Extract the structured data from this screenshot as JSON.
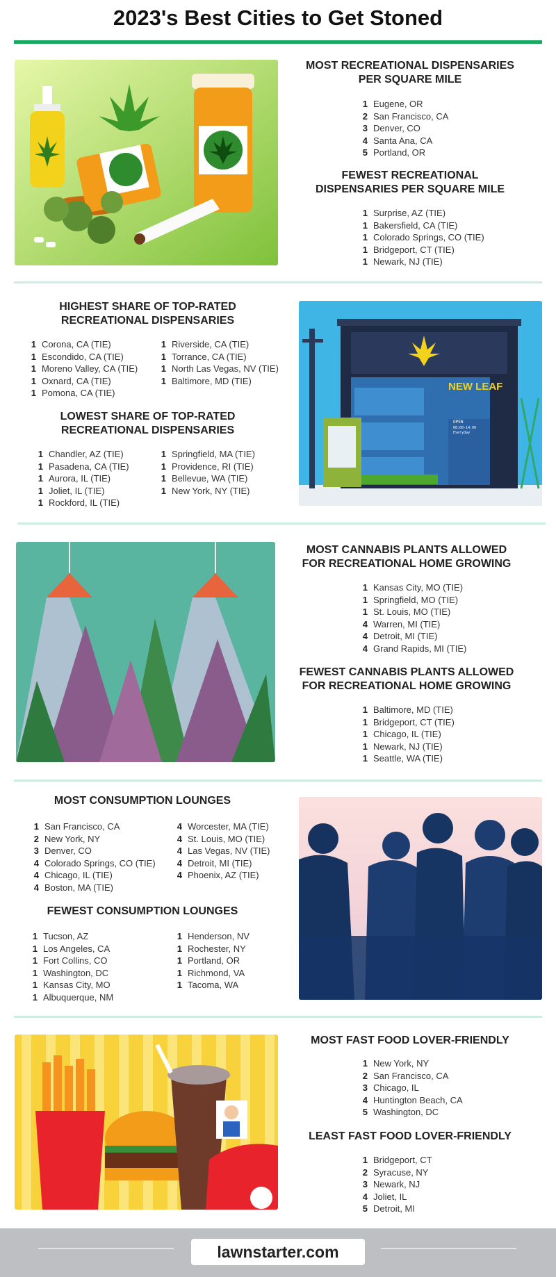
{
  "title": "2023's Best Cities to Get Stoned",
  "s1": {
    "a_title": "MOST RECREATIONAL DISPENSARIES PER SQUARE MILE",
    "a": [
      [
        "1",
        "Eugene, OR"
      ],
      [
        "2",
        "San Francisco, CA"
      ],
      [
        "3",
        "Denver, CO"
      ],
      [
        "4",
        "Santa Ana, CA"
      ],
      [
        "5",
        "Portland, OR"
      ]
    ],
    "b_title": "FEWEST RECREATIONAL DISPENSARIES PER SQUARE MILE",
    "b": [
      [
        "1",
        "Surprise, AZ (TIE)"
      ],
      [
        "1",
        "Bakersfield, CA (TIE)"
      ],
      [
        "1",
        "Colorado Springs, CO (TIE)"
      ],
      [
        "1",
        "Bridgeport, CT (TIE)"
      ],
      [
        "1",
        "Newark, NJ (TIE)"
      ]
    ]
  },
  "s2": {
    "a_title": "HIGHEST SHARE OF TOP-RATED RECREATIONAL DISPENSARIES",
    "a_left": [
      [
        "1",
        "Corona, CA (TIE)"
      ],
      [
        "1",
        "Escondido, CA (TIE)"
      ],
      [
        "1",
        "Moreno Valley, CA (TIE)"
      ],
      [
        "1",
        "Oxnard, CA (TIE)"
      ],
      [
        "1",
        "Pomona, CA (TIE)"
      ]
    ],
    "a_right": [
      [
        "1",
        "Riverside, CA (TIE)"
      ],
      [
        "1",
        "Torrance, CA (TIE)"
      ],
      [
        "1",
        "North Las Vegas, NV (TIE)"
      ],
      [
        "1",
        "Baltimore, MD (TIE)"
      ]
    ],
    "b_title": "LOWEST SHARE OF TOP-RATED RECREATIONAL DISPENSARIES",
    "b_left": [
      [
        "1",
        "Chandler, AZ (TIE)"
      ],
      [
        "1",
        "Pasadena, CA (TIE)"
      ],
      [
        "1",
        "Aurora, IL (TIE)"
      ],
      [
        "1",
        "Joliet, IL (TIE)"
      ],
      [
        "1",
        "Rockford, IL (TIE)"
      ]
    ],
    "b_right": [
      [
        "1",
        "Springfield, MA (TIE)"
      ],
      [
        "1",
        "Providence, RI (TIE)"
      ],
      [
        "1",
        "Bellevue, WA (TIE)"
      ],
      [
        "1",
        "New York, NY (TIE)"
      ]
    ],
    "store_sign": "NEW LEAF",
    "store_open": "OPEN",
    "store_hours": "08:00-14:00",
    "store_days": "Everyday"
  },
  "s3": {
    "a_title": "MOST CANNABIS PLANTS ALLOWED FOR RECREATIONAL HOME GROWING",
    "a": [
      [
        "1",
        "Kansas City, MO (TIE)"
      ],
      [
        "1",
        "Springfield, MO (TIE)"
      ],
      [
        "1",
        "St. Louis, MO (TIE)"
      ],
      [
        "4",
        "Warren, MI (TIE)"
      ],
      [
        "4",
        "Detroit, MI (TIE)"
      ],
      [
        "4",
        "Grand Rapids, MI (TIE)"
      ]
    ],
    "b_title": "FEWEST CANNABIS PLANTS ALLOWED FOR RECREATIONAL HOME GROWING",
    "b": [
      [
        "1",
        "Baltimore, MD (TIE)"
      ],
      [
        "1",
        "Bridgeport, CT (TIE)"
      ],
      [
        "1",
        "Chicago, IL (TIE)"
      ],
      [
        "1",
        "Newark, NJ (TIE)"
      ],
      [
        "1",
        "Seattle, WA (TIE)"
      ]
    ]
  },
  "s4": {
    "a_title": "MOST CONSUMPTION LOUNGES",
    "a_left": [
      [
        "1",
        "San Francisco, CA"
      ],
      [
        "2",
        "New York, NY"
      ],
      [
        "3",
        "Denver, CO"
      ],
      [
        "4",
        "Colorado Springs, CO (TIE)"
      ],
      [
        "4",
        "Chicago, IL (TIE)"
      ],
      [
        "4",
        "Boston, MA (TIE)"
      ]
    ],
    "a_right": [
      [
        "4",
        "Worcester, MA (TIE)"
      ],
      [
        "4",
        "St. Louis, MO (TIE)"
      ],
      [
        "4",
        "Las Vegas, NV (TIE)"
      ],
      [
        "4",
        "Detroit, MI (TIE)"
      ],
      [
        "4",
        "Phoenix, AZ (TIE)"
      ]
    ],
    "b_title": "FEWEST CONSUMPTION LOUNGES",
    "b_left": [
      [
        "1",
        "Tucson, AZ"
      ],
      [
        "1",
        "Los Angeles, CA"
      ],
      [
        "1",
        "Fort Collins, CO"
      ],
      [
        "1",
        "Washington, DC"
      ],
      [
        "1",
        "Kansas City, MO"
      ],
      [
        "1",
        "Albuquerque, NM"
      ]
    ],
    "b_right": [
      [
        "1",
        "Henderson, NV"
      ],
      [
        "1",
        "Rochester, NY"
      ],
      [
        "1",
        "Portland, OR"
      ],
      [
        "1",
        "Richmond, VA"
      ],
      [
        "1",
        "Tacoma, WA"
      ]
    ]
  },
  "s5": {
    "a_title": "MOST FAST FOOD LOVER-FRIENDLY",
    "a": [
      [
        "1",
        "New York, NY"
      ],
      [
        "2",
        "San Francisco, CA"
      ],
      [
        "3",
        "Chicago, IL"
      ],
      [
        "4",
        "Huntington Beach, CA"
      ],
      [
        "5",
        "Washington, DC"
      ]
    ],
    "b_title": "LEAST FAST FOOD LOVER-FRIENDLY",
    "b": [
      [
        "1",
        "Bridgeport, CT"
      ],
      [
        "2",
        "Syracuse, NY"
      ],
      [
        "3",
        "Newark, NJ"
      ],
      [
        "4",
        "Joliet, IL"
      ],
      [
        "5",
        "Detroit, MI"
      ]
    ]
  },
  "footer": {
    "brand": "lawnstarter.com"
  },
  "colors": {
    "accent": "#1aa960",
    "divider": "#cfece4",
    "footer": "#bdbfc2"
  }
}
